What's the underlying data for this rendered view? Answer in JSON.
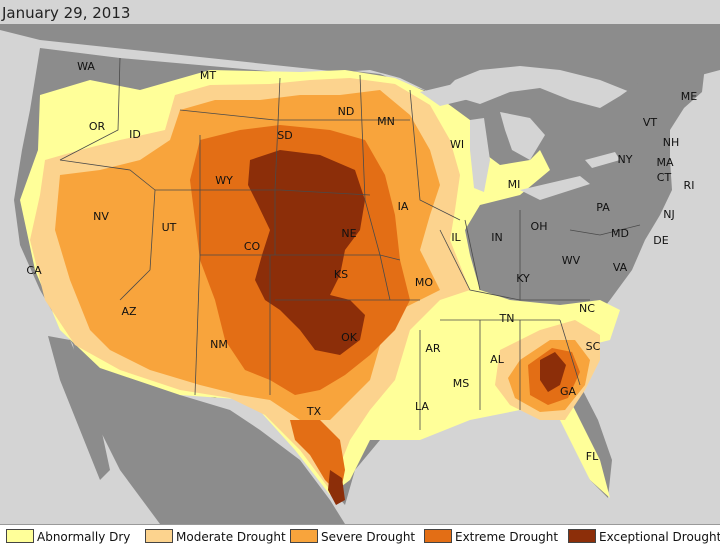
{
  "date": "January 29, 2013",
  "colors": {
    "ocean": "#d4d4d4",
    "land": "#8c8c8c",
    "border": "#4a4a4a",
    "d0": "#ffff99",
    "d1": "#fcd38e",
    "d2": "#f8a43c",
    "d3": "#e36e15",
    "d4": "#8c2e09"
  },
  "legend": [
    {
      "label": "Abnormally Dry",
      "color": "#ffff99"
    },
    {
      "label": "Moderate Drought",
      "color": "#fcd38e"
    },
    {
      "label": "Severe Drought",
      "color": "#f8a43c"
    },
    {
      "label": "Extreme Drought",
      "color": "#e36e15"
    },
    {
      "label": "Exceptional Drought",
      "color": "#8c2e09"
    }
  ],
  "states": [
    "WA",
    "OR",
    "CA",
    "NV",
    "ID",
    "MT",
    "WY",
    "UT",
    "AZ",
    "CO",
    "NM",
    "ND",
    "SD",
    "NE",
    "KS",
    "OK",
    "TX",
    "MN",
    "IA",
    "MO",
    "AR",
    "LA",
    "WI",
    "IL",
    "MI",
    "IN",
    "OH",
    "KY",
    "TN",
    "MS",
    "AL",
    "GA",
    "FL",
    "SC",
    "NC",
    "VA",
    "WV",
    "PA",
    "NY",
    "ME",
    "VT",
    "NH",
    "MA",
    "CT",
    "RI",
    "NJ",
    "DE",
    "MD"
  ]
}
